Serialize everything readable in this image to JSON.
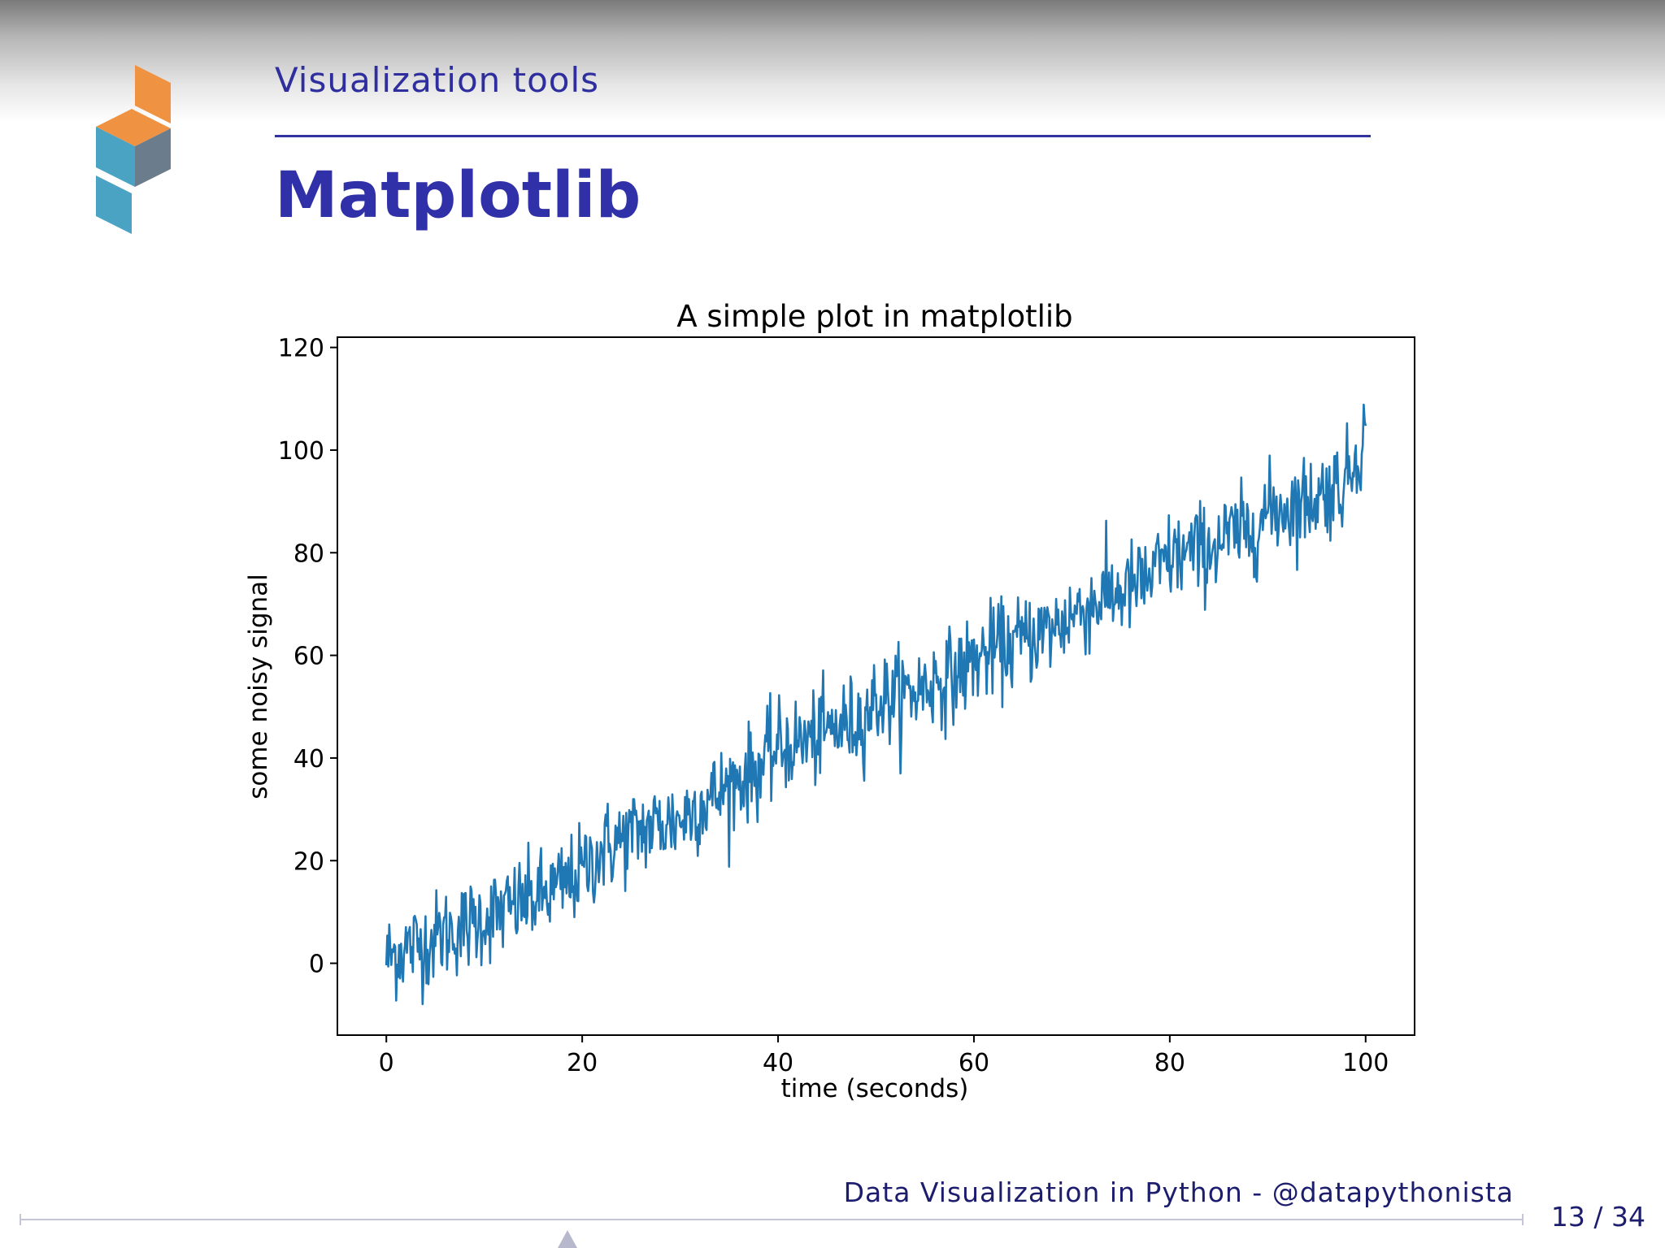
{
  "slide": {
    "section_title": "Visualization tools",
    "frame_title": "Matplotlib",
    "footer_text": "Data Visualization in Python - @datapythonista",
    "page_number": "13 / 34",
    "colors": {
      "title_blue": "#3030a8",
      "footer_text": "#1d1d6e",
      "logo_orange": "#ef9343",
      "logo_teal": "#4aa3c2",
      "logo_slate": "#6b7d8c"
    },
    "logo_icon": "stacked-cubes-icon"
  },
  "chart_data": {
    "type": "line",
    "title": "A simple plot in matplotlib",
    "xlabel": "time (seconds)",
    "ylabel": "some noisy signal",
    "xlim": [
      -5,
      105
    ],
    "ylim": [
      -14,
      122
    ],
    "xticks": [
      0,
      20,
      40,
      60,
      80,
      100
    ],
    "yticks": [
      0,
      20,
      40,
      60,
      80,
      100,
      120
    ],
    "grid": false,
    "legend": "none",
    "line_color": "#1f77b4",
    "series": [
      {
        "x": [
          0,
          2,
          4,
          6,
          8,
          10,
          12,
          14,
          16,
          18,
          20,
          22,
          24,
          26,
          28,
          30,
          32,
          34,
          36,
          38,
          40,
          42,
          44,
          46,
          48,
          50,
          52,
          54,
          56,
          58,
          60,
          62,
          64,
          66,
          68,
          70,
          72,
          74,
          76,
          78,
          80,
          82,
          84,
          86,
          88,
          90,
          92,
          94,
          96,
          98,
          100
        ],
        "y": [
          1,
          3,
          4,
          6,
          7,
          9,
          10,
          12,
          13,
          15,
          18,
          22,
          24,
          26,
          27,
          28,
          31,
          33,
          36,
          38,
          42,
          43,
          44,
          46,
          47,
          51,
          52,
          53,
          55,
          56,
          59,
          61,
          62,
          64,
          65,
          68,
          70,
          72,
          73,
          75,
          79,
          80,
          81,
          83,
          84,
          88,
          89,
          90,
          92,
          94,
          104
        ],
        "noise_amplitude": 6
      }
    ]
  }
}
